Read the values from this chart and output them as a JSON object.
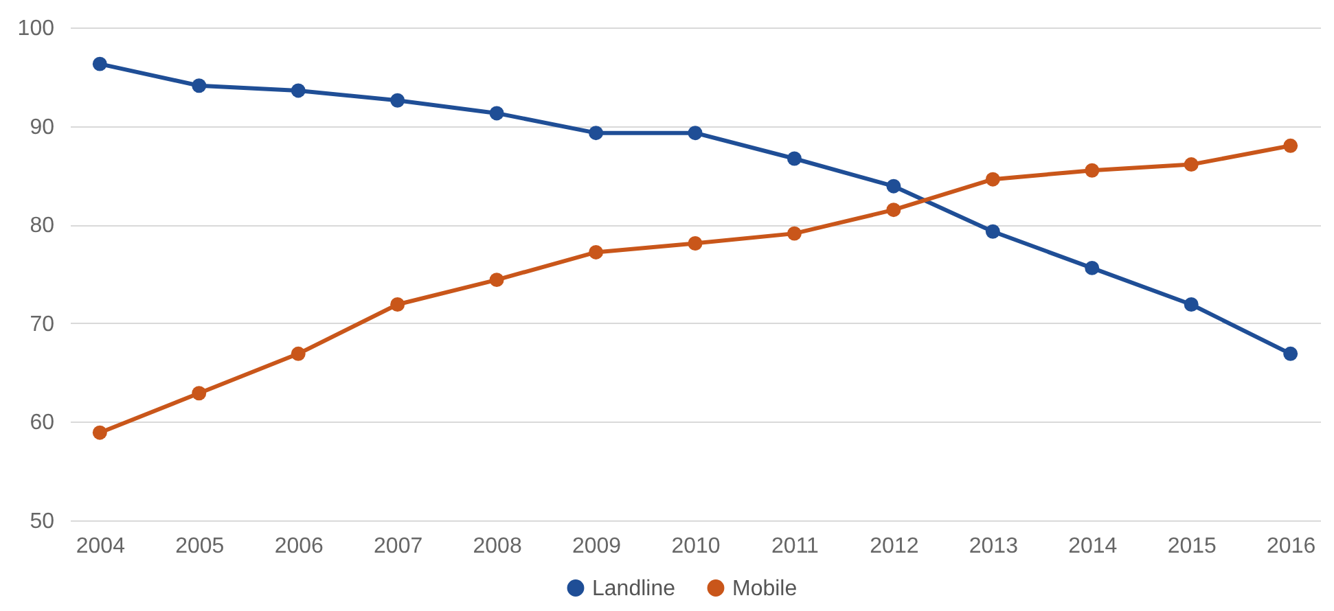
{
  "chart_data": {
    "type": "line",
    "categories": [
      "2004",
      "2005",
      "2006",
      "2007",
      "2008",
      "2009",
      "2010",
      "2011",
      "2012",
      "2013",
      "2014",
      "2015",
      "2016"
    ],
    "series": [
      {
        "name": "Landline",
        "color": "#1f4e96",
        "values": [
          96.3,
          94.1,
          93.6,
          92.6,
          91.3,
          89.3,
          89.3,
          86.7,
          83.9,
          79.3,
          75.6,
          71.9,
          66.9
        ]
      },
      {
        "name": "Mobile",
        "color": "#c9561a",
        "values": [
          58.9,
          62.9,
          66.9,
          71.9,
          74.4,
          77.2,
          78.1,
          79.1,
          81.5,
          84.6,
          85.5,
          86.1,
          88.0
        ]
      }
    ],
    "ylim": [
      50,
      100
    ],
    "yticks": [
      50,
      60,
      70,
      80,
      90,
      100
    ],
    "grid": "y",
    "legend": "bottom",
    "marker": "circle",
    "line_style": "solid"
  }
}
